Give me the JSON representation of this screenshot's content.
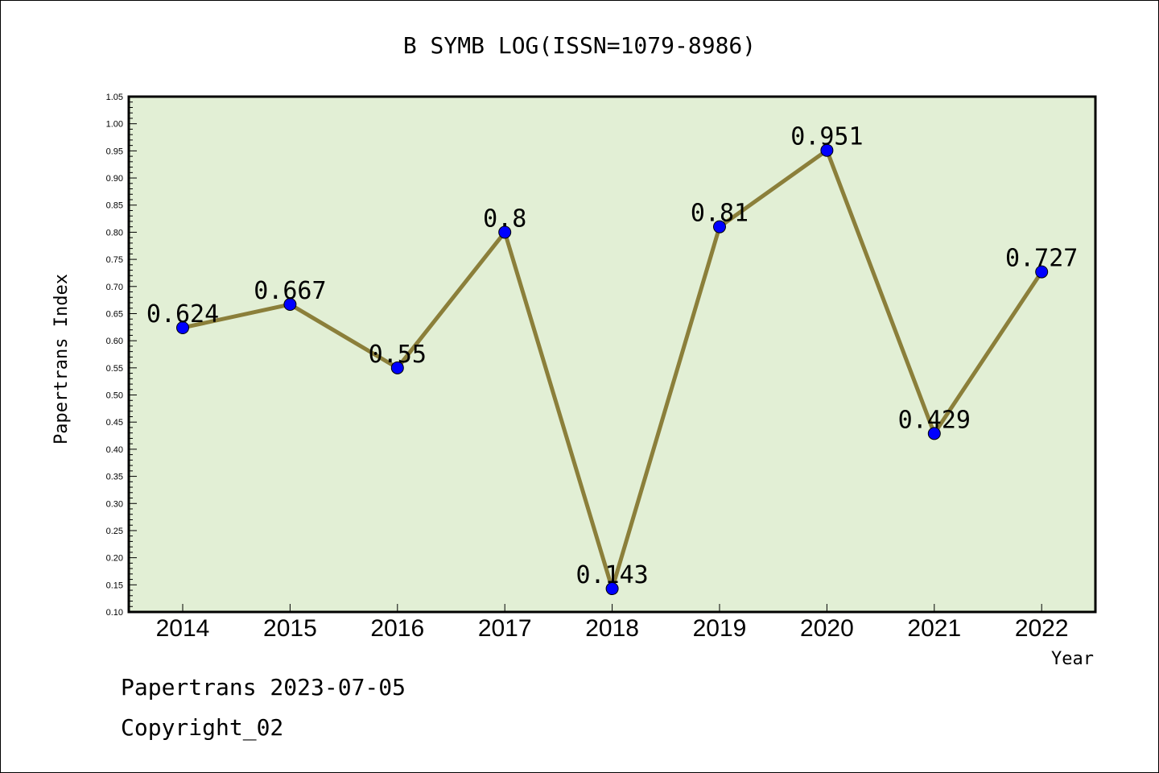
{
  "chart_data": {
    "type": "line",
    "title": "B SYMB LOG(ISSN=1079-8986)",
    "xlabel": "Year",
    "ylabel": "Papertrans Index",
    "categories": [
      "2014",
      "2015",
      "2016",
      "2017",
      "2018",
      "2019",
      "2020",
      "2021",
      "2022"
    ],
    "series": [
      {
        "values": [
          0.624,
          0.667,
          0.55,
          0.8,
          0.143,
          0.81,
          0.951,
          0.429,
          0.727
        ],
        "labels": [
          "0.624",
          "0.667",
          "0.55",
          "0.8",
          "0.143",
          "0.81",
          "0.951",
          "0.429",
          "0.727"
        ]
      }
    ],
    "ylim": [
      0.1,
      1.05
    ],
    "yticks": [
      "0.10",
      "0.15",
      "0.20",
      "0.25",
      "0.30",
      "0.35",
      "0.40",
      "0.45",
      "0.50",
      "0.55",
      "0.60",
      "0.65",
      "0.70",
      "0.75",
      "0.80",
      "0.85",
      "0.90",
      "0.95",
      "1.00",
      "1.05"
    ],
    "grid": false,
    "colors": {
      "plot_background": "#e2efd5",
      "line": "#8b7f3a",
      "marker": "#0000ff"
    }
  },
  "footer": {
    "line1": "Papertrans 2023-07-05",
    "line2": "Copyright_02"
  }
}
